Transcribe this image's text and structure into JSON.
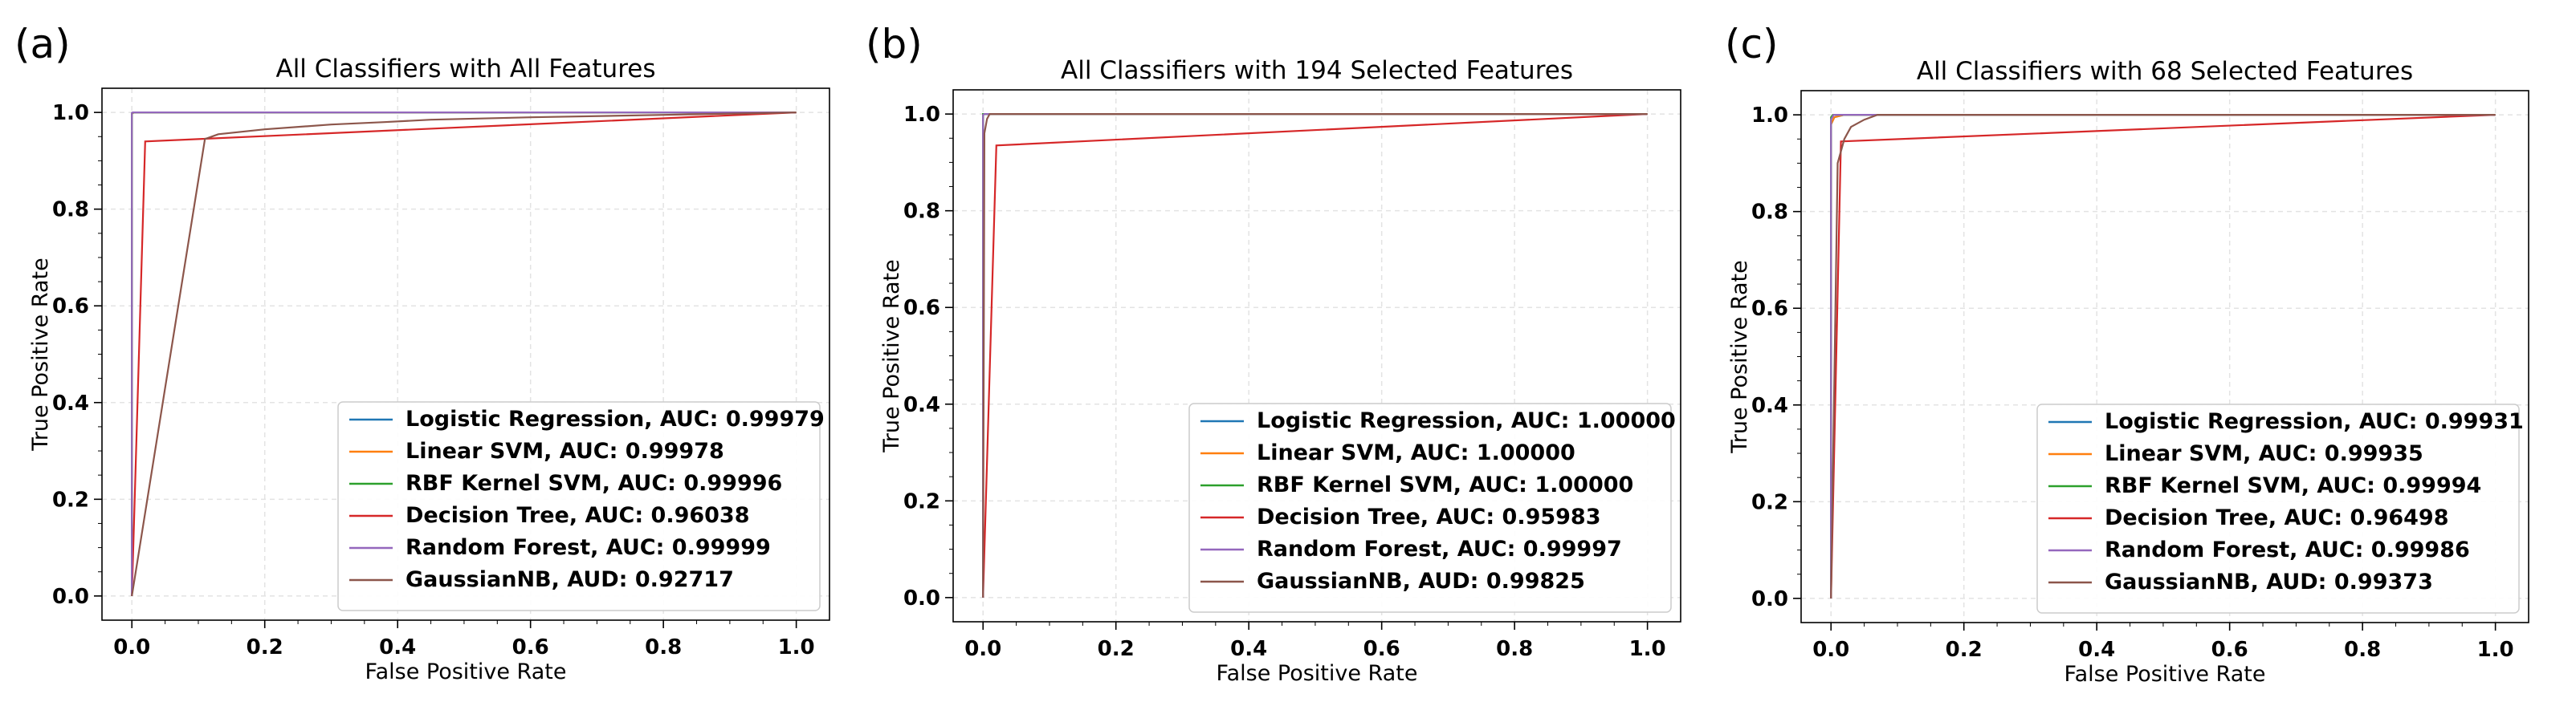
{
  "chart_data": [
    {
      "type": "line",
      "panel_label": "(a)",
      "title": "All Classifiers with All Features",
      "xlabel": "False Positive Rate",
      "ylabel": "True Positive Rate",
      "xlim": [
        -0.045,
        1.05
      ],
      "ylim": [
        -0.05,
        1.05
      ],
      "xticks": [
        "0.0",
        "0.2",
        "0.4",
        "0.6",
        "0.8",
        "1.0"
      ],
      "yticks": [
        "0.0",
        "0.2",
        "0.4",
        "0.6",
        "0.8",
        "1.0"
      ],
      "grid": true,
      "legend_position": "lower-right",
      "series": [
        {
          "name": "Logistic Regression, AUC: 0.99979",
          "color": "#1f77b4",
          "x": [
            0,
            0.0,
            0.003,
            1.0
          ],
          "y": [
            0,
            0.997,
            1.0,
            1.0
          ]
        },
        {
          "name": "Linear SVM, AUC: 0.99978",
          "color": "#ff7f0e",
          "x": [
            0,
            0.0,
            0.003,
            1.0
          ],
          "y": [
            0,
            0.997,
            1.0,
            1.0
          ]
        },
        {
          "name": "RBF Kernel SVM, AUC: 0.99996",
          "color": "#2ca02c",
          "x": [
            0,
            0.0,
            0.002,
            1.0
          ],
          "y": [
            0,
            0.998,
            1.0,
            1.0
          ]
        },
        {
          "name": "Decision Tree, AUC: 0.96038",
          "color": "#d62728",
          "x": [
            0,
            0.02,
            1.0
          ],
          "y": [
            0,
            0.94,
            1.0
          ]
        },
        {
          "name": "Random Forest, AUC: 0.99999",
          "color": "#9467bd",
          "x": [
            0,
            0.0,
            0.001,
            1.0
          ],
          "y": [
            0,
            0.999,
            1.0,
            1.0
          ]
        },
        {
          "name": "GaussianNB, AUD: 0.92717",
          "color": "#8c564b",
          "x": [
            0,
            0.11,
            0.13,
            0.2,
            0.3,
            0.38,
            0.45,
            0.6,
            0.8,
            1.0
          ],
          "y": [
            0,
            0.945,
            0.955,
            0.965,
            0.975,
            0.98,
            0.985,
            0.99,
            0.995,
            1.0
          ]
        }
      ]
    },
    {
      "type": "line",
      "panel_label": "(b)",
      "title": "All Classifiers with 194 Selected Features",
      "xlabel": "False Positive Rate",
      "ylabel": "True Positive Rate",
      "xlim": [
        -0.045,
        1.05
      ],
      "ylim": [
        -0.05,
        1.05
      ],
      "xticks": [
        "0.0",
        "0.2",
        "0.4",
        "0.6",
        "0.8",
        "1.0"
      ],
      "yticks": [
        "0.0",
        "0.2",
        "0.4",
        "0.6",
        "0.8",
        "1.0"
      ],
      "grid": true,
      "legend_position": "lower-right",
      "series": [
        {
          "name": "Logistic Regression, AUC: 1.00000",
          "color": "#1f77b4",
          "x": [
            0,
            0.0,
            1.0
          ],
          "y": [
            0,
            1.0,
            1.0
          ]
        },
        {
          "name": "Linear SVM, AUC: 1.00000",
          "color": "#ff7f0e",
          "x": [
            0,
            0.0,
            1.0
          ],
          "y": [
            0,
            1.0,
            1.0
          ]
        },
        {
          "name": "RBF Kernel SVM, AUC: 1.00000",
          "color": "#2ca02c",
          "x": [
            0,
            0.0,
            1.0
          ],
          "y": [
            0,
            1.0,
            1.0
          ]
        },
        {
          "name": "Decision Tree, AUC: 0.95983",
          "color": "#d62728",
          "x": [
            0,
            0.02,
            1.0
          ],
          "y": [
            0,
            0.935,
            1.0
          ]
        },
        {
          "name": "Random Forest, AUC: 0.99997",
          "color": "#9467bd",
          "x": [
            0,
            0.0,
            0.002,
            1.0
          ],
          "y": [
            0,
            0.998,
            1.0,
            1.0
          ]
        },
        {
          "name": "GaussianNB, AUD: 0.99825",
          "color": "#8c564b",
          "x": [
            0,
            0.002,
            0.006,
            0.01,
            1.0
          ],
          "y": [
            0,
            0.96,
            0.99,
            1.0,
            1.0
          ]
        }
      ]
    },
    {
      "type": "line",
      "panel_label": "(c)",
      "title": "All Classifiers with 68 Selected Features",
      "xlabel": "False Positive Rate",
      "ylabel": "True Positive Rate",
      "xlim": [
        -0.045,
        1.05
      ],
      "ylim": [
        -0.05,
        1.05
      ],
      "xticks": [
        "0.0",
        "0.2",
        "0.4",
        "0.6",
        "0.8",
        "1.0"
      ],
      "yticks": [
        "0.0",
        "0.2",
        "0.4",
        "0.6",
        "0.8",
        "1.0"
      ],
      "grid": true,
      "legend_position": "lower-right",
      "series": [
        {
          "name": "Logistic Regression, AUC: 0.99931",
          "color": "#1f77b4",
          "x": [
            0,
            0.0,
            0.005,
            0.02,
            1.0
          ],
          "y": [
            0,
            0.98,
            0.995,
            1.0,
            1.0
          ]
        },
        {
          "name": "Linear SVM, AUC: 0.99935",
          "color": "#ff7f0e",
          "x": [
            0,
            0.0,
            0.005,
            0.02,
            1.0
          ],
          "y": [
            0,
            0.98,
            0.995,
            1.0,
            1.0
          ]
        },
        {
          "name": "RBF Kernel SVM, AUC: 0.99994",
          "color": "#2ca02c",
          "x": [
            0,
            0.0,
            0.003,
            1.0
          ],
          "y": [
            0,
            0.995,
            1.0,
            1.0
          ]
        },
        {
          "name": "Decision Tree, AUC: 0.96498",
          "color": "#d62728",
          "x": [
            0,
            0.015,
            1.0
          ],
          "y": [
            0,
            0.945,
            1.0
          ]
        },
        {
          "name": "Random Forest, AUC: 0.99986",
          "color": "#9467bd",
          "x": [
            0,
            0.0,
            0.004,
            1.0
          ],
          "y": [
            0,
            0.99,
            1.0,
            1.0
          ]
        },
        {
          "name": "GaussianNB, AUD: 0.99373",
          "color": "#8c564b",
          "x": [
            0,
            0.01,
            0.02,
            0.03,
            0.05,
            0.07,
            1.0
          ],
          "y": [
            0,
            0.9,
            0.95,
            0.975,
            0.99,
            1.0,
            1.0
          ]
        }
      ]
    }
  ]
}
